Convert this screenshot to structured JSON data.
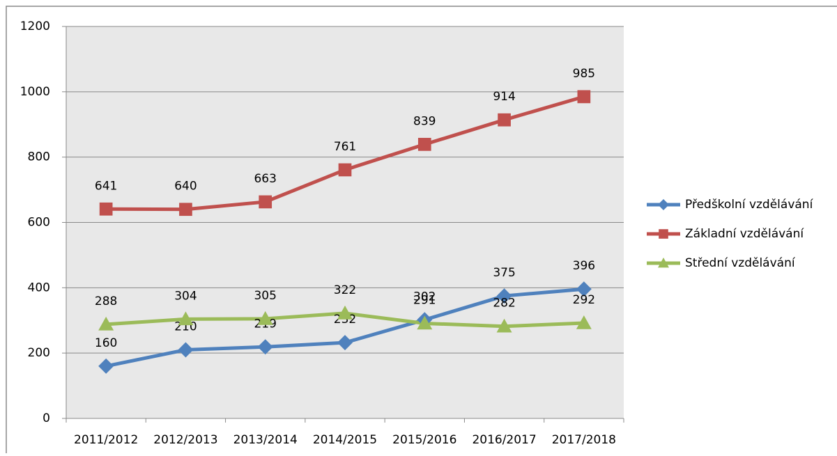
{
  "chart_data": {
    "type": "line",
    "categories": [
      "2011/2012",
      "2012/2013",
      "2013/2014",
      "2014/2015",
      "2015/2016",
      "2016/2017",
      "2017/2018"
    ],
    "series": [
      {
        "name": "Předškolní vzdělávání",
        "color": "#4f81bd",
        "marker": "diamond",
        "values": [
          160,
          210,
          219,
          232,
          302,
          375,
          396
        ]
      },
      {
        "name": "Základní vzdělávání",
        "color": "#c0504d",
        "marker": "square",
        "values": [
          641,
          640,
          663,
          761,
          839,
          914,
          985
        ]
      },
      {
        "name": "Střední vzdělávání",
        "color": "#9bbb59",
        "marker": "triangle",
        "values": [
          288,
          304,
          305,
          322,
          291,
          282,
          292
        ]
      }
    ],
    "ylim": [
      0,
      1200
    ],
    "yticks": [
      0,
      200,
      400,
      600,
      800,
      1000,
      1200
    ],
    "grid": true,
    "legend": "right"
  }
}
